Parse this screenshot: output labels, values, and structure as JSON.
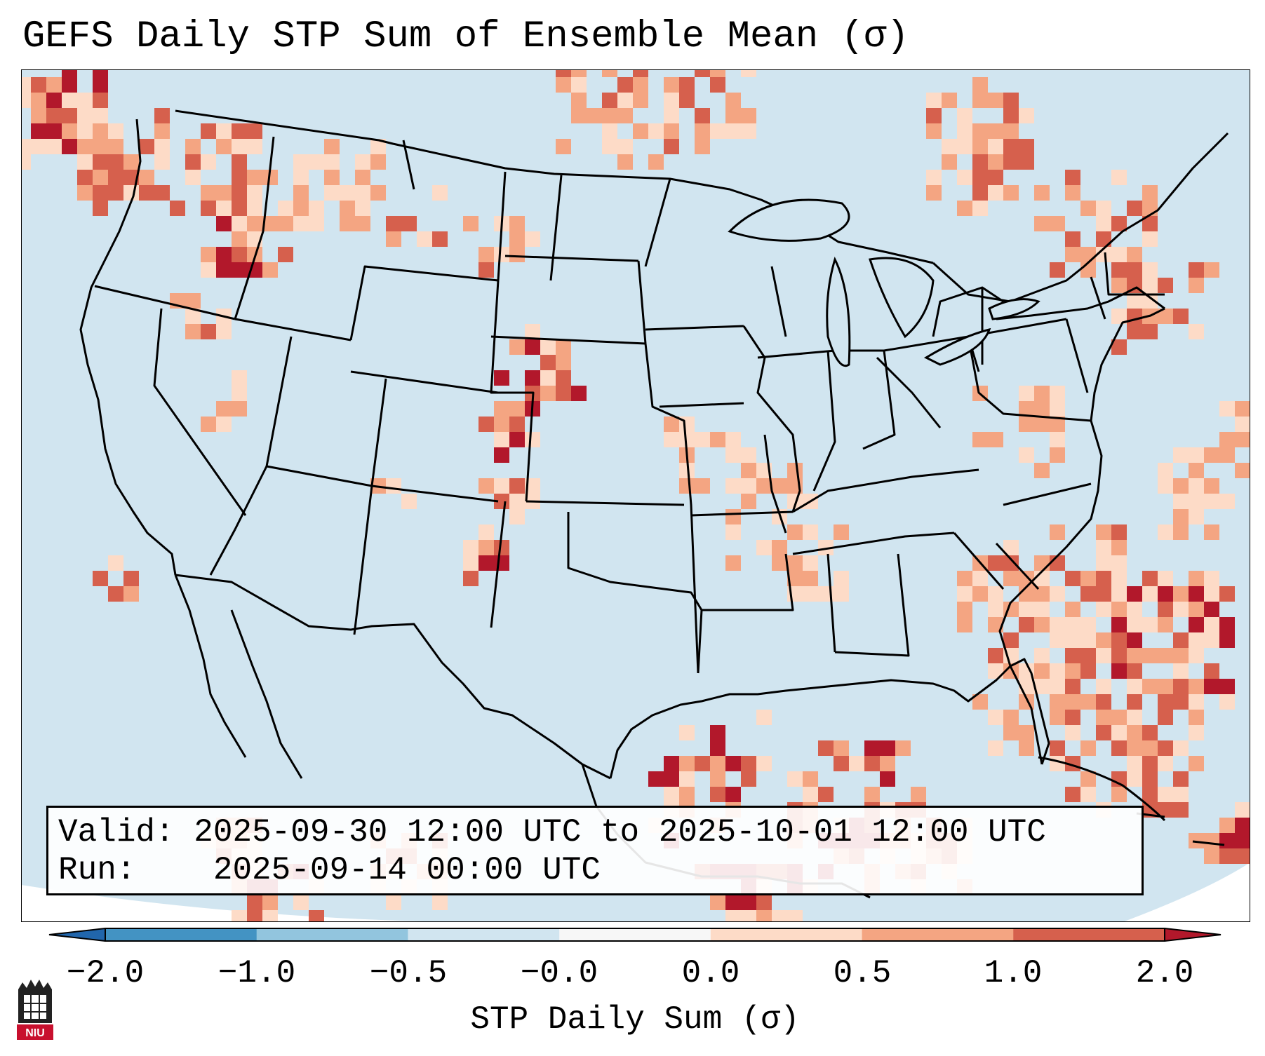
{
  "title": "GEFS Daily STP Sum of Ensemble Mean (σ)",
  "valid_label": "Valid:",
  "valid_value": "2025-09-30 12:00 UTC to 2025-10-01 12:00 UTC",
  "run_label": "Run:",
  "run_value": "2025-09-14 00:00 UTC",
  "colorbar": {
    "label": "STP Daily Sum (σ)",
    "ticks": [
      "−2.0",
      "−1.0",
      "−0.5",
      "−0.0",
      "0.0",
      "0.5",
      "1.0",
      "2.0"
    ],
    "bin_colors": [
      "#4393c3",
      "#92c5de",
      "#d1e5f0",
      "#f7f7f7",
      "#fddbc7",
      "#f4a582",
      "#d6604d"
    ],
    "under_color": "#2166ac",
    "over_color": "#b2182b"
  },
  "logo_text": "NIU",
  "map": {
    "background_color": "#d1e5f0",
    "icon": "conus-state-boundaries-map"
  }
}
